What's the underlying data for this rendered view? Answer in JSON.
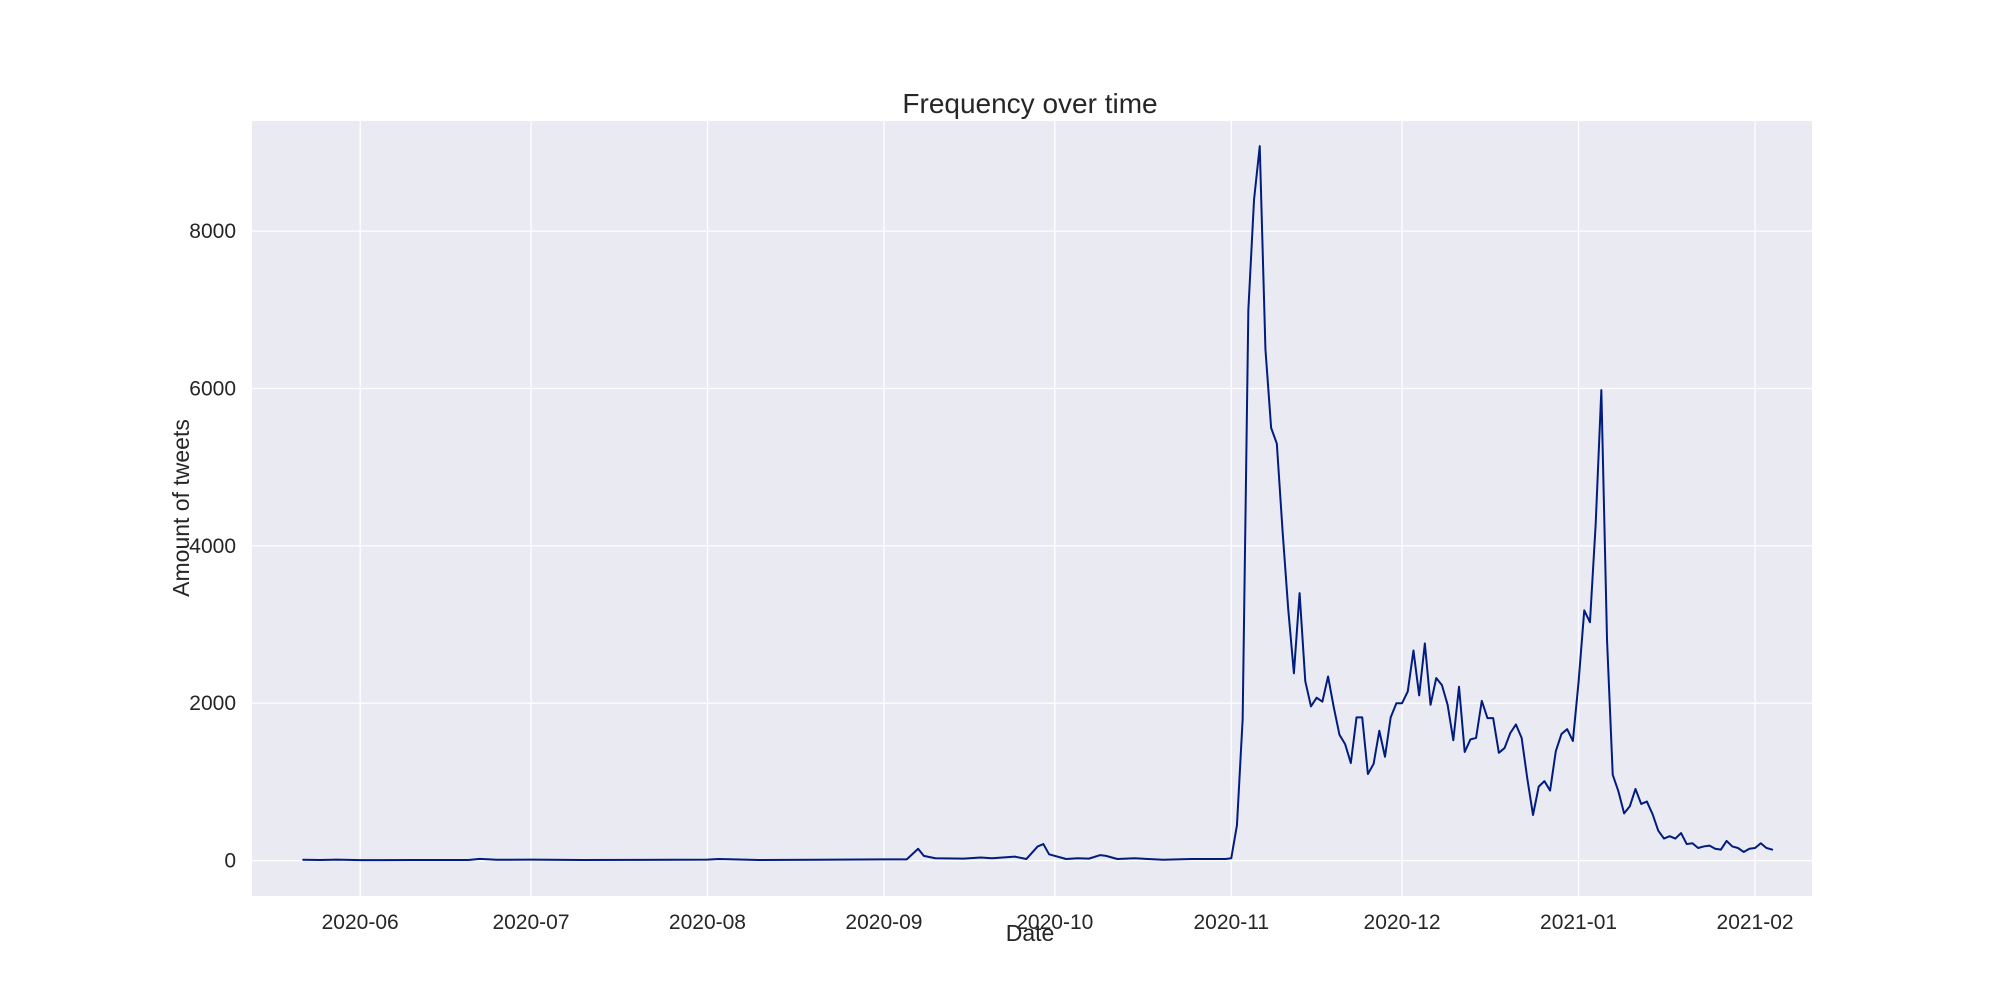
{
  "chart_data": {
    "type": "line",
    "title": "Frequency over time",
    "xlabel": "Date",
    "ylabel": "Amount of tweets",
    "x_type": "date",
    "xlim": [
      "2020-05-13",
      "2021-02-11"
    ],
    "ylim": [
      -450,
      9400
    ],
    "grid": true,
    "background_color": "#eaeaf2",
    "grid_color": "#ffffff",
    "x_ticks": [
      {
        "date": "2020-06-01",
        "label": "2020-06"
      },
      {
        "date": "2020-07-01",
        "label": "2020-07"
      },
      {
        "date": "2020-08-01",
        "label": "2020-08"
      },
      {
        "date": "2020-09-01",
        "label": "2020-09"
      },
      {
        "date": "2020-10-01",
        "label": "2020-10"
      },
      {
        "date": "2020-11-01",
        "label": "2020-11"
      },
      {
        "date": "2020-12-01",
        "label": "2020-12"
      },
      {
        "date": "2021-01-01",
        "label": "2021-01"
      },
      {
        "date": "2021-02-01",
        "label": "2021-02"
      }
    ],
    "y_ticks": [
      {
        "value": 0,
        "label": "0"
      },
      {
        "value": 2000,
        "label": "2000"
      },
      {
        "value": 4000,
        "label": "4000"
      },
      {
        "value": 6000,
        "label": "6000"
      },
      {
        "value": 8000,
        "label": "8000"
      }
    ],
    "series": [
      {
        "color": "#001c7f",
        "points": [
          [
            "2020-05-22",
            10
          ],
          [
            "2020-05-25",
            8
          ],
          [
            "2020-05-28",
            12
          ],
          [
            "2020-06-01",
            6
          ],
          [
            "2020-06-10",
            7
          ],
          [
            "2020-06-20",
            8
          ],
          [
            "2020-06-22",
            22
          ],
          [
            "2020-06-25",
            10
          ],
          [
            "2020-07-01",
            12
          ],
          [
            "2020-07-10",
            8
          ],
          [
            "2020-07-20",
            9
          ],
          [
            "2020-08-01",
            12
          ],
          [
            "2020-08-03",
            20
          ],
          [
            "2020-08-10",
            8
          ],
          [
            "2020-08-20",
            10
          ],
          [
            "2020-09-01",
            15
          ],
          [
            "2020-09-05",
            15
          ],
          [
            "2020-09-07",
            150
          ],
          [
            "2020-09-08",
            60
          ],
          [
            "2020-09-10",
            30
          ],
          [
            "2020-09-15",
            25
          ],
          [
            "2020-09-18",
            40
          ],
          [
            "2020-09-20",
            30
          ],
          [
            "2020-09-24",
            50
          ],
          [
            "2020-09-26",
            20
          ],
          [
            "2020-09-28",
            180
          ],
          [
            "2020-09-29",
            210
          ],
          [
            "2020-09-30",
            80
          ],
          [
            "2020-10-03",
            20
          ],
          [
            "2020-10-05",
            30
          ],
          [
            "2020-10-07",
            25
          ],
          [
            "2020-10-09",
            70
          ],
          [
            "2020-10-10",
            60
          ],
          [
            "2020-10-12",
            20
          ],
          [
            "2020-10-15",
            30
          ],
          [
            "2020-10-20",
            10
          ],
          [
            "2020-10-25",
            20
          ],
          [
            "2020-10-31",
            20
          ],
          [
            "2020-11-01",
            30
          ],
          [
            "2020-11-02",
            450
          ],
          [
            "2020-11-03",
            1800
          ],
          [
            "2020-11-04",
            7000
          ],
          [
            "2020-11-05",
            8400
          ],
          [
            "2020-11-06",
            9080
          ],
          [
            "2020-11-07",
            6500
          ],
          [
            "2020-11-08",
            5500
          ],
          [
            "2020-11-09",
            5300
          ],
          [
            "2020-11-10",
            4200
          ],
          [
            "2020-11-11",
            3200
          ],
          [
            "2020-11-12",
            2380
          ],
          [
            "2020-11-13",
            3400
          ],
          [
            "2020-11-14",
            2280
          ],
          [
            "2020-11-15",
            1960
          ],
          [
            "2020-11-16",
            2070
          ],
          [
            "2020-11-17",
            2020
          ],
          [
            "2020-11-18",
            2340
          ],
          [
            "2020-11-19",
            1950
          ],
          [
            "2020-11-20",
            1600
          ],
          [
            "2020-11-21",
            1480
          ],
          [
            "2020-11-22",
            1240
          ],
          [
            "2020-11-23",
            1820
          ],
          [
            "2020-11-24",
            1820
          ],
          [
            "2020-11-25",
            1100
          ],
          [
            "2020-11-26",
            1230
          ],
          [
            "2020-11-27",
            1650
          ],
          [
            "2020-11-28",
            1320
          ],
          [
            "2020-11-29",
            1820
          ],
          [
            "2020-11-30",
            2000
          ],
          [
            "2020-12-01",
            2000
          ],
          [
            "2020-12-02",
            2150
          ],
          [
            "2020-12-03",
            2670
          ],
          [
            "2020-12-04",
            2100
          ],
          [
            "2020-12-05",
            2760
          ],
          [
            "2020-12-06",
            1980
          ],
          [
            "2020-12-07",
            2320
          ],
          [
            "2020-12-08",
            2230
          ],
          [
            "2020-12-09",
            1980
          ],
          [
            "2020-12-10",
            1530
          ],
          [
            "2020-12-11",
            2210
          ],
          [
            "2020-12-12",
            1380
          ],
          [
            "2020-12-13",
            1540
          ],
          [
            "2020-12-14",
            1560
          ],
          [
            "2020-12-15",
            2030
          ],
          [
            "2020-12-16",
            1810
          ],
          [
            "2020-12-17",
            1810
          ],
          [
            "2020-12-18",
            1370
          ],
          [
            "2020-12-19",
            1430
          ],
          [
            "2020-12-20",
            1620
          ],
          [
            "2020-12-21",
            1730
          ],
          [
            "2020-12-22",
            1560
          ],
          [
            "2020-12-23",
            1040
          ],
          [
            "2020-12-24",
            580
          ],
          [
            "2020-12-25",
            940
          ],
          [
            "2020-12-26",
            1010
          ],
          [
            "2020-12-27",
            890
          ],
          [
            "2020-12-28",
            1390
          ],
          [
            "2020-12-29",
            1610
          ],
          [
            "2020-12-30",
            1670
          ],
          [
            "2020-12-31",
            1520
          ],
          [
            "2021-01-01",
            2270
          ],
          [
            "2021-01-02",
            3180
          ],
          [
            "2021-01-03",
            3030
          ],
          [
            "2021-01-04",
            4270
          ],
          [
            "2021-01-05",
            5980
          ],
          [
            "2021-01-06",
            2800
          ],
          [
            "2021-01-07",
            1090
          ],
          [
            "2021-01-08",
            880
          ],
          [
            "2021-01-09",
            600
          ],
          [
            "2021-01-10",
            690
          ],
          [
            "2021-01-11",
            910
          ],
          [
            "2021-01-12",
            720
          ],
          [
            "2021-01-13",
            750
          ],
          [
            "2021-01-14",
            590
          ],
          [
            "2021-01-15",
            380
          ],
          [
            "2021-01-16",
            280
          ],
          [
            "2021-01-17",
            310
          ],
          [
            "2021-01-18",
            280
          ],
          [
            "2021-01-19",
            350
          ],
          [
            "2021-01-20",
            210
          ],
          [
            "2021-01-21",
            220
          ],
          [
            "2021-01-22",
            160
          ],
          [
            "2021-01-23",
            180
          ],
          [
            "2021-01-24",
            190
          ],
          [
            "2021-01-25",
            150
          ],
          [
            "2021-01-26",
            140
          ],
          [
            "2021-01-27",
            250
          ],
          [
            "2021-01-28",
            180
          ],
          [
            "2021-01-29",
            160
          ],
          [
            "2021-01-30",
            110
          ],
          [
            "2021-01-31",
            150
          ],
          [
            "2021-02-01",
            160
          ],
          [
            "2021-02-02",
            220
          ],
          [
            "2021-02-03",
            160
          ],
          [
            "2021-02-04",
            140
          ]
        ]
      }
    ]
  }
}
